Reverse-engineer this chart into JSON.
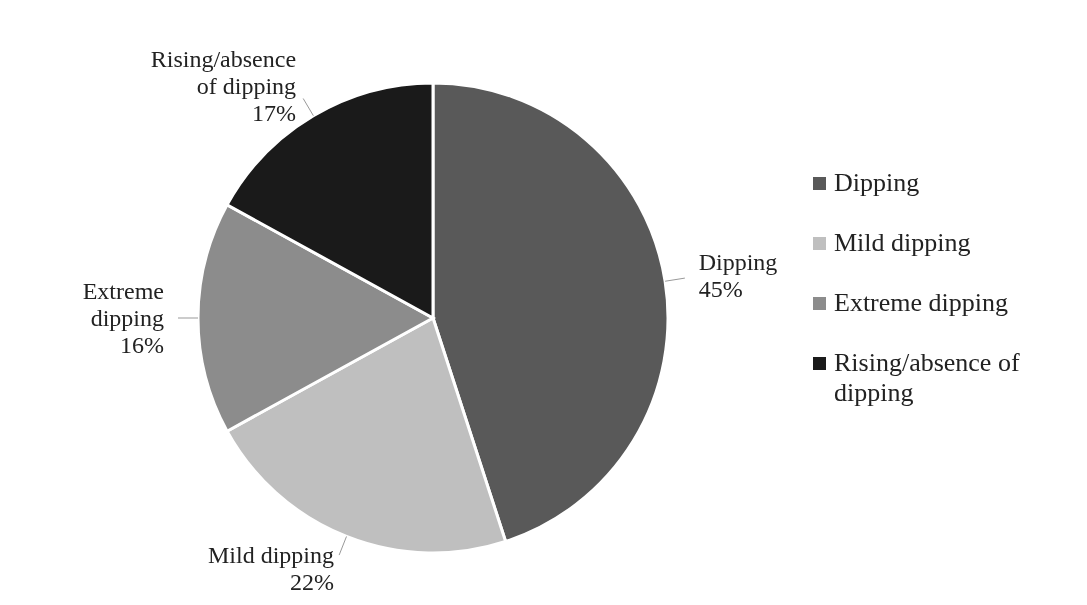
{
  "chart_data": {
    "type": "pie",
    "categories": [
      "Dipping",
      "Mild dipping",
      "Extreme dipping",
      "Rising/absence of dipping"
    ],
    "values": [
      45,
      22,
      16,
      17
    ],
    "value_labels": [
      "45%",
      "22%",
      "16%",
      "17%"
    ],
    "colors": [
      "#595959",
      "#bfbfbf",
      "#8c8c8c",
      "#1a1a1a"
    ],
    "legend": "right"
  }
}
